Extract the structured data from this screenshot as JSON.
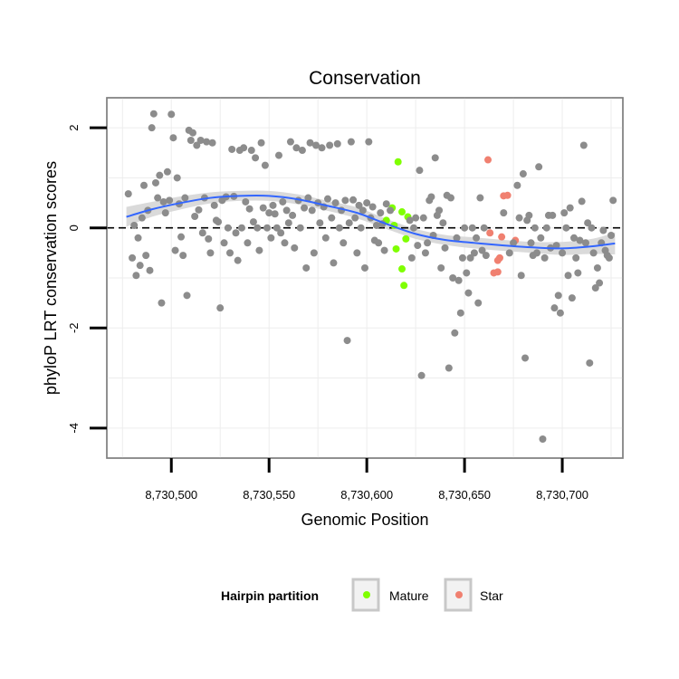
{
  "chart_data": {
    "type": "scatter",
    "title": "Conservation",
    "xlabel": "Genomic Position",
    "ylabel": "phyloP LRT conservation scores",
    "xlim": [
      8730467,
      8730731
    ],
    "ylim": [
      -4.6,
      2.6
    ],
    "x_ticks": [
      8730500,
      8730550,
      8730600,
      8730650,
      8730700
    ],
    "x_tick_labels": [
      "8,730,500",
      "8,730,550",
      "8,730,600",
      "8,730,650",
      "8,730,700"
    ],
    "y_ticks": [
      2,
      0,
      -2,
      -4
    ],
    "y_tick_labels": [
      "2",
      "0",
      "-2",
      "-4"
    ],
    "grid": true,
    "reference_line": {
      "y": 0,
      "style": "dashed"
    },
    "legend": {
      "title": "Hairpin partition",
      "placement": "bottom",
      "entries": [
        {
          "label": "Mature",
          "color": "#7fff00"
        },
        {
          "label": "Star",
          "color": "#f08070"
        }
      ]
    },
    "colors": {
      "other": "#8c8c8c",
      "mature": "#7fff00",
      "star": "#f08070",
      "smooth": "#3366ff",
      "band": "#d4d4d4"
    },
    "smooth": {
      "x": [
        8730477,
        8730490,
        8730505,
        8730520,
        8730535,
        8730550,
        8730565,
        8730580,
        8730595,
        8730610,
        8730625,
        8730640,
        8730655,
        8730670,
        8730685,
        8730700,
        8730715,
        8730727
      ],
      "y": [
        0.22,
        0.37,
        0.5,
        0.6,
        0.64,
        0.64,
        0.57,
        0.44,
        0.3,
        0.08,
        -0.12,
        -0.24,
        -0.3,
        -0.35,
        -0.39,
        -0.41,
        -0.37,
        -0.31
      ],
      "lower": [
        0.02,
        0.22,
        0.37,
        0.49,
        0.54,
        0.54,
        0.47,
        0.34,
        0.19,
        -0.02,
        -0.22,
        -0.34,
        -0.41,
        -0.46,
        -0.5,
        -0.54,
        -0.52,
        -0.53
      ],
      "upper": [
        0.42,
        0.52,
        0.63,
        0.71,
        0.74,
        0.74,
        0.67,
        0.54,
        0.41,
        0.18,
        -0.02,
        -0.14,
        -0.19,
        -0.24,
        -0.28,
        -0.28,
        -0.22,
        -0.09
      ]
    },
    "series": [
      {
        "name": "Mature",
        "points": [
          [
            8730616,
            1.32
          ],
          [
            8730613,
            0.4
          ],
          [
            8730618,
            0.32
          ],
          [
            8730621,
            0.22
          ],
          [
            8730610,
            0.15
          ],
          [
            8730614,
            0.05
          ],
          [
            8730620,
            -0.22
          ],
          [
            8730615,
            -0.42
          ],
          [
            8730618,
            -0.82
          ],
          [
            8730619,
            -1.15
          ]
        ]
      },
      {
        "name": "Star",
        "points": [
          [
            8730662,
            1.36
          ],
          [
            8730672,
            0.65
          ],
          [
            8730670,
            0.64
          ],
          [
            8730663,
            -0.1
          ],
          [
            8730669,
            -0.18
          ],
          [
            8730676,
            -0.25
          ],
          [
            8730668,
            -0.6
          ],
          [
            8730667,
            -0.65
          ],
          [
            8730665,
            -0.9
          ],
          [
            8730667,
            -0.88
          ]
        ]
      },
      {
        "points": [
          [
            8730478,
            0.68
          ],
          [
            8730480,
            -0.6
          ],
          [
            8730481,
            0.05
          ],
          [
            8730482,
            -0.95
          ],
          [
            8730483,
            -0.2
          ],
          [
            8730484,
            -0.75
          ],
          [
            8730485,
            0.2
          ],
          [
            8730486,
            0.85
          ],
          [
            8730487,
            -0.55
          ],
          [
            8730488,
            0.35
          ],
          [
            8730489,
            -0.85
          ],
          [
            8730490,
            2.0
          ],
          [
            8730491,
            2.28
          ],
          [
            8730492,
            0.9
          ],
          [
            8730493,
            0.6
          ],
          [
            8730494,
            1.05
          ],
          [
            8730495,
            -1.5
          ],
          [
            8730496,
            0.52
          ],
          [
            8730497,
            0.3
          ],
          [
            8730498,
            1.12
          ],
          [
            8730499,
            0.55
          ],
          [
            8730500,
            2.27
          ],
          [
            8730501,
            1.8
          ],
          [
            8730502,
            -0.45
          ],
          [
            8730503,
            1.0
          ],
          [
            8730504,
            0.48
          ],
          [
            8730505,
            -0.18
          ],
          [
            8730506,
            -0.55
          ],
          [
            8730507,
            0.6
          ],
          [
            8730508,
            -1.35
          ],
          [
            8730509,
            1.95
          ],
          [
            8730510,
            1.75
          ],
          [
            8730511,
            1.9
          ],
          [
            8730512,
            0.23
          ],
          [
            8730513,
            1.65
          ],
          [
            8730514,
            0.36
          ],
          [
            8730515,
            1.75
          ],
          [
            8730516,
            -0.1
          ],
          [
            8730517,
            0.6
          ],
          [
            8730518,
            1.72
          ],
          [
            8730519,
            -0.22
          ],
          [
            8730520,
            -0.5
          ],
          [
            8730521,
            1.7
          ],
          [
            8730522,
            0.45
          ],
          [
            8730523,
            0.15
          ],
          [
            8730524,
            0.12
          ],
          [
            8730525,
            -1.6
          ],
          [
            8730526,
            0.55
          ],
          [
            8730527,
            -0.3
          ],
          [
            8730528,
            0.62
          ],
          [
            8730529,
            0.0
          ],
          [
            8730530,
            -0.5
          ],
          [
            8730531,
            1.57
          ],
          [
            8730532,
            0.63
          ],
          [
            8730533,
            -0.1
          ],
          [
            8730534,
            -0.65
          ],
          [
            8730535,
            1.55
          ],
          [
            8730536,
            0.0
          ],
          [
            8730537,
            1.6
          ],
          [
            8730538,
            0.52
          ],
          [
            8730539,
            -0.3
          ],
          [
            8730540,
            0.38
          ],
          [
            8730541,
            1.55
          ],
          [
            8730542,
            0.12
          ],
          [
            8730543,
            1.4
          ],
          [
            8730544,
            0.0
          ],
          [
            8730545,
            -0.45
          ],
          [
            8730546,
            1.7
          ],
          [
            8730547,
            0.4
          ],
          [
            8730548,
            1.25
          ],
          [
            8730549,
            0.0
          ],
          [
            8730550,
            0.3
          ],
          [
            8730551,
            -0.2
          ],
          [
            8730552,
            0.45
          ],
          [
            8730553,
            0.28
          ],
          [
            8730554,
            0.0
          ],
          [
            8730555,
            1.45
          ],
          [
            8730556,
            -0.1
          ],
          [
            8730557,
            0.52
          ],
          [
            8730558,
            -0.3
          ],
          [
            8730559,
            0.35
          ],
          [
            8730560,
            0.1
          ],
          [
            8730561,
            1.72
          ],
          [
            8730562,
            0.25
          ],
          [
            8730563,
            -0.4
          ],
          [
            8730564,
            1.6
          ],
          [
            8730565,
            0.55
          ],
          [
            8730566,
            0.0
          ],
          [
            8730567,
            1.55
          ],
          [
            8730568,
            0.4
          ],
          [
            8730569,
            -0.8
          ],
          [
            8730570,
            0.6
          ],
          [
            8730571,
            1.7
          ],
          [
            8730572,
            0.35
          ],
          [
            8730573,
            -0.5
          ],
          [
            8730574,
            1.65
          ],
          [
            8730575,
            0.5
          ],
          [
            8730576,
            0.1
          ],
          [
            8730577,
            1.6
          ],
          [
            8730578,
            0.42
          ],
          [
            8730579,
            -0.2
          ],
          [
            8730580,
            0.58
          ],
          [
            8730581,
            1.65
          ],
          [
            8730582,
            0.2
          ],
          [
            8730583,
            -0.7
          ],
          [
            8730584,
            0.5
          ],
          [
            8730585,
            1.68
          ],
          [
            8730586,
            0.0
          ],
          [
            8730587,
            0.35
          ],
          [
            8730588,
            -0.3
          ],
          [
            8730589,
            0.55
          ],
          [
            8730590,
            -2.25
          ],
          [
            8730591,
            0.1
          ],
          [
            8730592,
            1.72
          ],
          [
            8730593,
            0.56
          ],
          [
            8730594,
            0.2
          ],
          [
            8730595,
            -0.5
          ],
          [
            8730596,
            0.45
          ],
          [
            8730597,
            0.0
          ],
          [
            8730598,
            0.35
          ],
          [
            8730599,
            -0.8
          ],
          [
            8730600,
            0.5
          ],
          [
            8730601,
            1.72
          ],
          [
            8730602,
            0.2
          ],
          [
            8730603,
            0.42
          ],
          [
            8730604,
            -0.25
          ],
          [
            8730605,
            0.05
          ],
          [
            8730606,
            -0.3
          ],
          [
            8730607,
            0.3
          ],
          [
            8730608,
            0.08
          ],
          [
            8730609,
            -0.45
          ],
          [
            8730610,
            0.48
          ],
          [
            8730612,
            0.35
          ],
          [
            8730622,
            0.15
          ],
          [
            8730623,
            -0.6
          ],
          [
            8730624,
            0.0
          ],
          [
            8730625,
            0.2
          ],
          [
            8730626,
            -0.35
          ],
          [
            8730627,
            1.15
          ],
          [
            8730628,
            -2.95
          ],
          [
            8730629,
            0.2
          ],
          [
            8730630,
            -0.5
          ],
          [
            8730631,
            -0.3
          ],
          [
            8730632,
            0.55
          ],
          [
            8730633,
            0.62
          ],
          [
            8730634,
            -0.15
          ],
          [
            8730635,
            1.4
          ],
          [
            8730636,
            0.25
          ],
          [
            8730637,
            0.35
          ],
          [
            8730638,
            -0.8
          ],
          [
            8730639,
            0.1
          ],
          [
            8730640,
            -0.4
          ],
          [
            8730641,
            0.65
          ],
          [
            8730642,
            -2.8
          ],
          [
            8730643,
            0.6
          ],
          [
            8730644,
            -1.0
          ],
          [
            8730645,
            -2.1
          ],
          [
            8730646,
            -0.2
          ],
          [
            8730647,
            -1.05
          ],
          [
            8730648,
            -1.7
          ],
          [
            8730649,
            -0.6
          ],
          [
            8730650,
            0.0
          ],
          [
            8730651,
            -0.9
          ],
          [
            8730652,
            -1.3
          ],
          [
            8730653,
            -0.6
          ],
          [
            8730654,
            0.0
          ],
          [
            8730655,
            -0.5
          ],
          [
            8730656,
            -0.2
          ],
          [
            8730657,
            -1.5
          ],
          [
            8730658,
            0.6
          ],
          [
            8730659,
            -0.45
          ],
          [
            8730660,
            0.0
          ],
          [
            8730661,
            -0.55
          ],
          [
            8730670,
            0.3
          ],
          [
            8730673,
            -0.5
          ],
          [
            8730675,
            -0.3
          ],
          [
            8730677,
            0.85
          ],
          [
            8730678,
            0.2
          ],
          [
            8730679,
            -0.95
          ],
          [
            8730680,
            1.08
          ],
          [
            8730681,
            -2.6
          ],
          [
            8730682,
            0.15
          ],
          [
            8730683,
            0.25
          ],
          [
            8730684,
            -0.3
          ],
          [
            8730685,
            -0.55
          ],
          [
            8730686,
            0.0
          ],
          [
            8730687,
            -0.5
          ],
          [
            8730688,
            1.22
          ],
          [
            8730689,
            -0.2
          ],
          [
            8730690,
            -4.22
          ],
          [
            8730691,
            -0.6
          ],
          [
            8730692,
            0.0
          ],
          [
            8730693,
            0.25
          ],
          [
            8730694,
            -0.4
          ],
          [
            8730695,
            0.25
          ],
          [
            8730696,
            -1.6
          ],
          [
            8730697,
            -0.35
          ],
          [
            8730698,
            -1.35
          ],
          [
            8730699,
            -1.7
          ],
          [
            8730700,
            -0.5
          ],
          [
            8730701,
            0.3
          ],
          [
            8730702,
            0.0
          ],
          [
            8730703,
            -0.95
          ],
          [
            8730704,
            0.4
          ],
          [
            8730705,
            -1.4
          ],
          [
            8730706,
            -0.2
          ],
          [
            8730707,
            -0.6
          ],
          [
            8730708,
            -0.9
          ],
          [
            8730709,
            -0.25
          ],
          [
            8730710,
            0.53
          ],
          [
            8730711,
            1.65
          ],
          [
            8730712,
            -0.3
          ],
          [
            8730713,
            0.1
          ],
          [
            8730714,
            -2.7
          ],
          [
            8730715,
            0.0
          ],
          [
            8730716,
            -0.5
          ],
          [
            8730717,
            -1.2
          ],
          [
            8730718,
            -0.8
          ],
          [
            8730719,
            -1.1
          ],
          [
            8730720,
            -0.3
          ],
          [
            8730721,
            -0.05
          ],
          [
            8730722,
            -0.45
          ],
          [
            8730723,
            -0.55
          ],
          [
            8730724,
            -0.6
          ],
          [
            8730725,
            -0.15
          ],
          [
            8730726,
            0.55
          ]
        ]
      }
    ]
  }
}
